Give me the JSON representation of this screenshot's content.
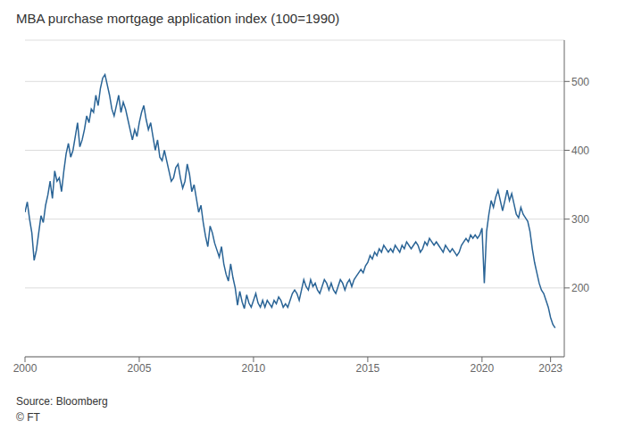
{
  "chart_data": {
    "type": "line",
    "title": "MBA purchase mortgage application index (100=1990)",
    "annotations": [
      "Source: Bloomberg",
      "© FT"
    ],
    "color": "#2a6496",
    "grid": true,
    "xlim": [
      2000.0,
      2023.6
    ],
    "xticks": [
      2000,
      2005,
      2010,
      2015,
      2020,
      2023
    ],
    "ylim": [
      100,
      560
    ],
    "yticks": [
      200,
      300,
      400,
      500
    ],
    "x": [
      2000.0,
      2000.1,
      2000.2,
      2000.3,
      2000.4,
      2000.5,
      2000.6,
      2000.7,
      2000.8,
      2000.9,
      2001.0,
      2001.1,
      2001.2,
      2001.3,
      2001.4,
      2001.5,
      2001.6,
      2001.7,
      2001.8,
      2001.9,
      2002.0,
      2002.1,
      2002.2,
      2002.3,
      2002.4,
      2002.5,
      2002.6,
      2002.7,
      2002.8,
      2002.9,
      2003.0,
      2003.1,
      2003.2,
      2003.3,
      2003.4,
      2003.5,
      2003.6,
      2003.7,
      2003.8,
      2003.9,
      2004.0,
      2004.1,
      2004.2,
      2004.3,
      2004.4,
      2004.5,
      2004.6,
      2004.7,
      2004.8,
      2004.9,
      2005.0,
      2005.1,
      2005.2,
      2005.3,
      2005.4,
      2005.5,
      2005.6,
      2005.7,
      2005.8,
      2005.9,
      2006.0,
      2006.1,
      2006.2,
      2006.3,
      2006.4,
      2006.5,
      2006.6,
      2006.7,
      2006.8,
      2006.9,
      2007.0,
      2007.1,
      2007.2,
      2007.3,
      2007.4,
      2007.5,
      2007.6,
      2007.7,
      2007.8,
      2007.9,
      2008.0,
      2008.1,
      2008.2,
      2008.3,
      2008.4,
      2008.5,
      2008.6,
      2008.7,
      2008.8,
      2008.9,
      2009.0,
      2009.1,
      2009.2,
      2009.3,
      2009.4,
      2009.5,
      2009.6,
      2009.7,
      2009.8,
      2009.9,
      2010.0,
      2010.1,
      2010.2,
      2010.3,
      2010.4,
      2010.5,
      2010.6,
      2010.7,
      2010.8,
      2010.9,
      2011.0,
      2011.1,
      2011.2,
      2011.3,
      2011.4,
      2011.5,
      2011.6,
      2011.7,
      2011.8,
      2011.9,
      2012.0,
      2012.1,
      2012.2,
      2012.3,
      2012.4,
      2012.5,
      2012.6,
      2012.7,
      2012.8,
      2012.9,
      2013.0,
      2013.1,
      2013.2,
      2013.3,
      2013.4,
      2013.5,
      2013.6,
      2013.7,
      2013.8,
      2013.9,
      2014.0,
      2014.1,
      2014.2,
      2014.3,
      2014.4,
      2014.5,
      2014.6,
      2014.7,
      2014.8,
      2014.9,
      2015.0,
      2015.1,
      2015.2,
      2015.3,
      2015.4,
      2015.5,
      2015.6,
      2015.7,
      2015.8,
      2015.9,
      2016.0,
      2016.1,
      2016.2,
      2016.3,
      2016.4,
      2016.5,
      2016.6,
      2016.7,
      2016.8,
      2016.9,
      2017.0,
      2017.1,
      2017.2,
      2017.3,
      2017.4,
      2017.5,
      2017.6,
      2017.7,
      2017.8,
      2017.9,
      2018.0,
      2018.1,
      2018.2,
      2018.3,
      2018.4,
      2018.5,
      2018.6,
      2018.7,
      2018.8,
      2018.9,
      2019.0,
      2019.1,
      2019.2,
      2019.3,
      2019.4,
      2019.5,
      2019.6,
      2019.7,
      2019.8,
      2019.9,
      2020.0,
      2020.1,
      2020.2,
      2020.3,
      2020.4,
      2020.5,
      2020.6,
      2020.7,
      2020.8,
      2020.9,
      2021.0,
      2021.1,
      2021.2,
      2021.3,
      2021.4,
      2021.5,
      2021.6,
      2021.7,
      2021.8,
      2021.9,
      2022.0,
      2022.1,
      2022.2,
      2022.3,
      2022.4,
      2022.5,
      2022.6,
      2022.7,
      2022.8,
      2022.9,
      2023.0,
      2023.1,
      2023.2
    ],
    "values": [
      310,
      325,
      300,
      280,
      240,
      255,
      280,
      305,
      295,
      320,
      335,
      355,
      330,
      370,
      355,
      360,
      340,
      370,
      395,
      410,
      390,
      400,
      420,
      440,
      405,
      415,
      430,
      450,
      440,
      460,
      455,
      480,
      465,
      490,
      505,
      510,
      495,
      480,
      460,
      450,
      465,
      480,
      455,
      470,
      460,
      445,
      430,
      415,
      430,
      420,
      440,
      455,
      465,
      445,
      430,
      440,
      420,
      400,
      415,
      390,
      385,
      400,
      385,
      370,
      355,
      360,
      375,
      380,
      360,
      345,
      355,
      380,
      365,
      340,
      350,
      330,
      310,
      320,
      295,
      275,
      260,
      290,
      280,
      265,
      255,
      245,
      260,
      235,
      220,
      210,
      235,
      215,
      200,
      175,
      195,
      180,
      170,
      190,
      178,
      172,
      182,
      192,
      178,
      172,
      182,
      172,
      182,
      177,
      172,
      182,
      177,
      187,
      182,
      172,
      177,
      172,
      182,
      192,
      197,
      192,
      182,
      197,
      212,
      202,
      197,
      212,
      202,
      207,
      197,
      192,
      202,
      212,
      207,
      197,
      207,
      197,
      192,
      202,
      212,
      207,
      197,
      207,
      212,
      202,
      212,
      217,
      222,
      227,
      222,
      232,
      237,
      247,
      242,
      252,
      247,
      257,
      252,
      262,
      257,
      252,
      257,
      252,
      262,
      257,
      252,
      262,
      257,
      267,
      262,
      257,
      262,
      267,
      262,
      252,
      257,
      267,
      262,
      272,
      267,
      262,
      267,
      262,
      257,
      252,
      262,
      257,
      252,
      257,
      252,
      247,
      252,
      262,
      267,
      272,
      267,
      277,
      272,
      277,
      272,
      277,
      287,
      207,
      282,
      307,
      327,
      317,
      332,
      342,
      327,
      312,
      327,
      342,
      327,
      337,
      322,
      307,
      302,
      317,
      307,
      302,
      297,
      282,
      257,
      237,
      222,
      207,
      197,
      192,
      182,
      172,
      157,
      147,
      142
    ]
  }
}
